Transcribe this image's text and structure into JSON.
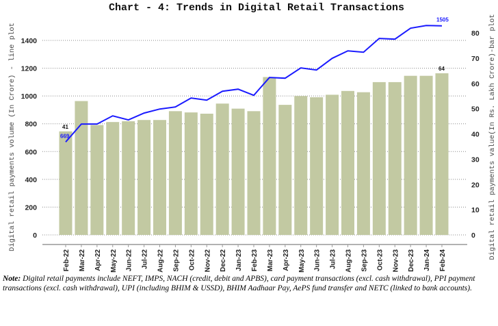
{
  "chart_data": {
    "type": "bar+line",
    "title": "Chart - 4: Trends in Digital Retail Transactions",
    "ylabel_left": "Digital retail payments volume (In Crore) - line plot",
    "ylabel_right": "Digital retail payments value(In Rs. Lakh Crore)-bar plot",
    "categories": [
      "Feb-22",
      "Mar-22",
      "Apr-22",
      "May-22",
      "Jun-22",
      "Jul-22",
      "Aug-22",
      "Sep-22",
      "Oct-22",
      "Nov-22",
      "Dec-22",
      "Jan-23",
      "Feb-23",
      "Mar-23",
      "Apr-23",
      "May-23",
      "Jun-23",
      "Jul-23",
      "Aug-23",
      "Sep-23",
      "Oct-23",
      "Nov-23",
      "Dec-23",
      "Jan-24",
      "Feb-24"
    ],
    "bar_values": [
      41,
      53,
      43.5,
      44.7,
      45,
      45.5,
      45.5,
      49,
      48.5,
      48,
      52,
      50,
      49,
      62.5,
      51.5,
      55,
      54.5,
      55.5,
      57,
      56.5,
      60.5,
      60.5,
      63,
      63,
      64
    ],
    "line_values": [
      669,
      798,
      798,
      857,
      828,
      877,
      906,
      921,
      985,
      970,
      1034,
      1049,
      1005,
      1133,
      1128,
      1202,
      1187,
      1271,
      1325,
      1315,
      1414,
      1409,
      1488,
      1507,
      1505
    ],
    "data_labels": {
      "bar_first": "41",
      "bar_last": "64",
      "line_first": "669",
      "line_last": "1505"
    },
    "ylim_left": [
      0,
      1600
    ],
    "yticks_left": [
      0,
      200,
      400,
      600,
      800,
      1000,
      1200,
      1400
    ],
    "ylim_right": [
      0,
      88
    ],
    "yticks_right": [
      0,
      10,
      20,
      30,
      40,
      50,
      60,
      70,
      80
    ],
    "grid": true,
    "colors": {
      "bar": "#c2c9a2",
      "line": "#1a1aff"
    }
  },
  "note": {
    "label": "Note:",
    "text": " Digital retail payments include NEFT, IMPS, NACH (credit, debit and APBS), card payment transactions (excl. cash withdrawal), PPI payment transactions (excl. cash withdrawal), UPI (including BHIM & USSD), BHIM Aadhaar Pay, AePS fund transfer and NETC (linked to bank accounts)."
  }
}
